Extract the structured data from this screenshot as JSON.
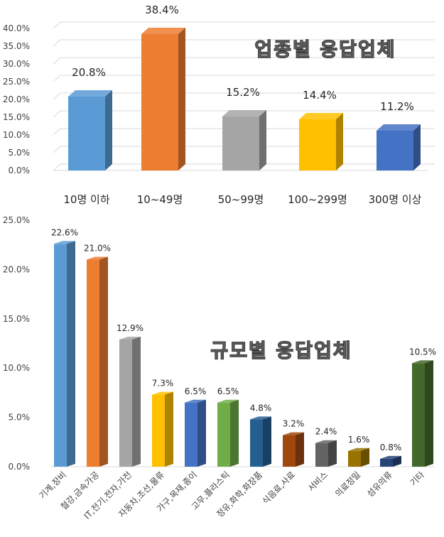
{
  "chart_data": [
    {
      "type": "bar",
      "title": "업종별 응답업체",
      "categories": [
        "10명 이하",
        "10~49명",
        "50~99명",
        "100~299명",
        "300명 이상"
      ],
      "values": [
        20.8,
        38.4,
        15.2,
        14.4,
        11.2
      ],
      "value_labels": [
        "20.8%",
        "38.4%",
        "15.2%",
        "14.4%",
        "11.2%"
      ],
      "colors": [
        "#5B9BD5",
        "#ED7D31",
        "#A5A5A5",
        "#FFC000",
        "#4472C4"
      ],
      "ylim": [
        0,
        40
      ],
      "yticks": [
        "0.0%",
        "5.0%",
        "10.0%",
        "15.0%",
        "20.0%",
        "25.0%",
        "30.0%",
        "35.0%",
        "40.0%"
      ],
      "grid": true
    },
    {
      "type": "bar",
      "title": "규모별 응답업체",
      "categories": [
        "기계,장비",
        "철강,금속가공",
        "IT,전기,전자,가전",
        "자동차,조선,물류",
        "가구,목재,종이",
        "고무,플라스틱",
        "정유,화학,화장품",
        "식음료,사료",
        "서비스",
        "의료정밀",
        "섬유의류",
        "기타"
      ],
      "values": [
        22.6,
        21.0,
        12.9,
        7.3,
        6.5,
        6.5,
        4.8,
        3.2,
        2.4,
        1.6,
        0.8,
        10.5
      ],
      "value_labels": [
        "22.6%",
        "21.0%",
        "12.9%",
        "7.3%",
        "6.5%",
        "6.5%",
        "4.8%",
        "3.2%",
        "2.4%",
        "1.6%",
        "0.8%",
        "10.5%"
      ],
      "colors": [
        "#5B9BD5",
        "#ED7D31",
        "#A5A5A5",
        "#FFC000",
        "#4472C4",
        "#70AD47",
        "#255E91",
        "#9E480E",
        "#636363",
        "#997300",
        "#264478",
        "#43682B"
      ],
      "ylim": [
        0,
        25
      ],
      "yticks": [
        "0.0%",
        "5.0%",
        "10.0%",
        "15.0%",
        "20.0%",
        "25.0%"
      ],
      "grid": false
    }
  ]
}
